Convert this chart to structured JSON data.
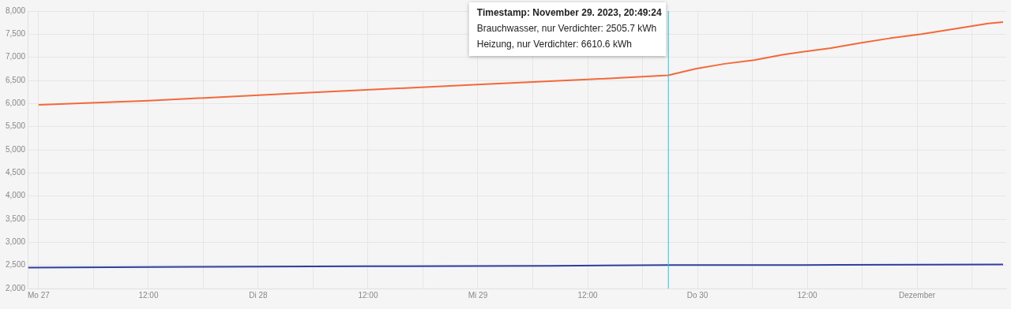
{
  "chart_data": {
    "type": "line",
    "xlim": [
      "2023-11-26T22:48",
      "2023-12-01T09:45"
    ],
    "xticks": [
      {
        "value": "2023-11-27T00:00",
        "label": "Mo 27"
      },
      {
        "value": "2023-11-27T06:00",
        "label": null
      },
      {
        "value": "2023-11-27T12:00",
        "label": "12:00"
      },
      {
        "value": "2023-11-27T18:00",
        "label": null
      },
      {
        "value": "2023-11-28T00:00",
        "label": "Di 28"
      },
      {
        "value": "2023-11-28T06:00",
        "label": null
      },
      {
        "value": "2023-11-28T12:00",
        "label": "12:00"
      },
      {
        "value": "2023-11-28T18:00",
        "label": null
      },
      {
        "value": "2023-11-29T00:00",
        "label": "Mi 29"
      },
      {
        "value": "2023-11-29T06:00",
        "label": null
      },
      {
        "value": "2023-11-29T12:00",
        "label": "12:00"
      },
      {
        "value": "2023-11-29T18:00",
        "label": null
      },
      {
        "value": "2023-11-30T00:00",
        "label": "Do 30"
      },
      {
        "value": "2023-11-30T06:00",
        "label": null
      },
      {
        "value": "2023-11-30T12:00",
        "label": "12:00"
      },
      {
        "value": "2023-11-30T18:00",
        "label": null
      },
      {
        "value": "2023-12-01T00:00",
        "label": "Dezember"
      },
      {
        "value": "2023-12-01T06:00",
        "label": null
      }
    ],
    "ylim": [
      2000,
      8000
    ],
    "yticks": [
      {
        "value": 2000,
        "label": "2,000"
      },
      {
        "value": 2500,
        "label": "2,500"
      },
      {
        "value": 3000,
        "label": "3,000"
      },
      {
        "value": 3500,
        "label": "3,500"
      },
      {
        "value": 4000,
        "label": "4,000"
      },
      {
        "value": 4500,
        "label": "4,500"
      },
      {
        "value": 5000,
        "label": "5,000"
      },
      {
        "value": 5500,
        "label": "5,500"
      },
      {
        "value": 6000,
        "label": "6,000"
      },
      {
        "value": 6500,
        "label": "6,500"
      },
      {
        "value": 7000,
        "label": "7,000"
      },
      {
        "value": 7500,
        "label": "7,500"
      },
      {
        "value": 8000,
        "label": "8,000"
      }
    ],
    "grid": true,
    "legend": false,
    "marker": "none",
    "line_style": "solid",
    "series": [
      {
        "color": "#f4683a",
        "x": [
          "2023-11-27T00:00",
          "2023-11-27T12:00",
          "2023-11-28T06:00",
          "2023-11-29T00:00",
          "2023-11-29T12:00",
          "2023-11-29T20:49",
          "2023-11-29T23:48",
          "2023-11-30T03:00",
          "2023-11-30T06:12",
          "2023-11-30T09:24",
          "2023-11-30T12:00",
          "2023-11-30T14:36",
          "2023-11-30T17:48",
          "2023-11-30T21:00",
          "2023-12-01T00:30",
          "2023-12-01T04:18",
          "2023-12-01T07:48",
          "2023-12-01T09:24"
        ],
        "values": [
          5970,
          6060,
          6240,
          6410,
          6520,
          6610.6,
          6750,
          6860,
          6940,
          7060,
          7130,
          7200,
          7310,
          7410,
          7500,
          7620,
          7730,
          7760
        ]
      },
      {
        "color": "#303f9f",
        "x": [
          "2023-11-26T22:52",
          "2023-11-27T08:00",
          "2023-11-27T17:00",
          "2023-11-28T12:00",
          "2023-11-29T08:00",
          "2023-11-29T20:49",
          "2023-11-30T15:30",
          "2023-12-01T09:24"
        ],
        "values": [
          2450,
          2460,
          2470,
          2480,
          2490,
          2505.7,
          2510,
          2520
        ]
      }
    ],
    "ref_lines": [
      {
        "axis": "x",
        "value": "2023-11-29T20:49:24",
        "color": "#26c6da"
      }
    ],
    "annotations": [
      "Timestamp: November 29. 2023, 20:49:24",
      "Brauchwasser, nur Verdichter: 2505.7 kWh",
      "Heizung, nur Verdichter: 6610.6 kWh"
    ]
  }
}
